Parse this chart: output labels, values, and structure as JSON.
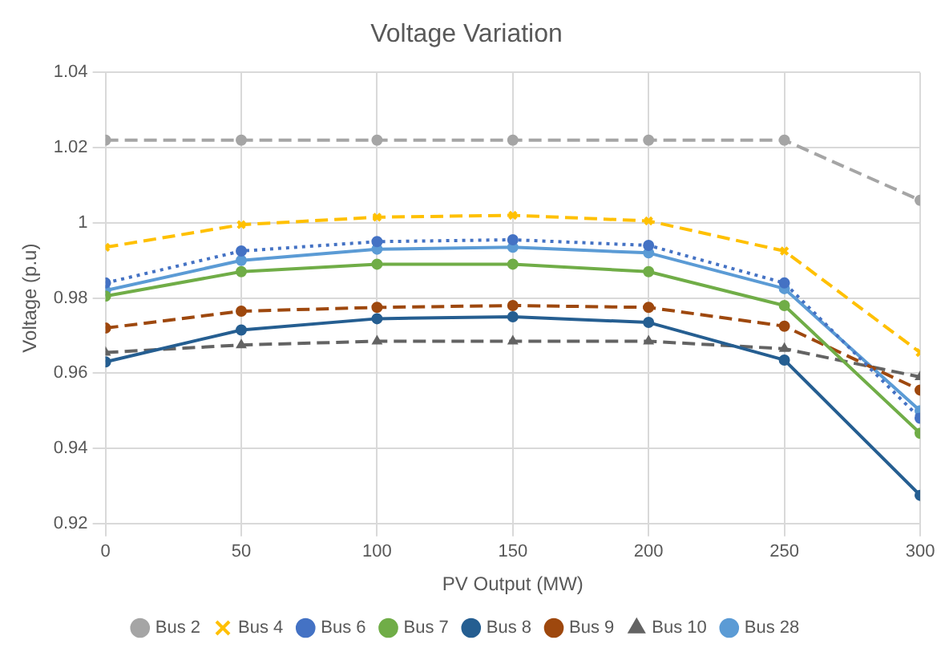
{
  "chart_data": {
    "type": "line",
    "title": "Voltage Variation",
    "xlabel": "PV Output (MW)",
    "ylabel": "Voltage (p.u)",
    "x": [
      0,
      50,
      100,
      150,
      200,
      250,
      300
    ],
    "xlim": [
      0,
      300
    ],
    "xticks": [
      0,
      50,
      100,
      150,
      200,
      250,
      300
    ],
    "ylim": [
      0.92,
      1.04
    ],
    "yticks": [
      0.92,
      0.94,
      0.96,
      0.98,
      1,
      1.02,
      1.04
    ],
    "grid": true,
    "legend": "bottom",
    "series": [
      {
        "name": "Bus 2",
        "color": "#a5a5a5",
        "line_style": "dashed",
        "marker": "circle",
        "values": [
          1.022,
          1.022,
          1.022,
          1.022,
          1.022,
          1.022,
          1.006
        ]
      },
      {
        "name": "Bus 4",
        "color": "#ffc000",
        "line_style": "dashed",
        "marker": "cross",
        "values": [
          0.9935,
          0.9995,
          1.0015,
          1.002,
          1.0005,
          0.9925,
          0.9655
        ]
      },
      {
        "name": "Bus 6",
        "color": "#4472c4",
        "line_style": "dotted",
        "marker": "circle",
        "values": [
          0.984,
          0.9925,
          0.995,
          0.9955,
          0.994,
          0.984,
          0.948
        ]
      },
      {
        "name": "Bus 7",
        "color": "#70ad47",
        "line_style": "solid",
        "marker": "circle",
        "values": [
          0.9805,
          0.987,
          0.989,
          0.989,
          0.987,
          0.978,
          0.944
        ]
      },
      {
        "name": "Bus 8",
        "color": "#255e91",
        "line_style": "solid",
        "marker": "circle",
        "values": [
          0.963,
          0.9715,
          0.9745,
          0.975,
          0.9735,
          0.9635,
          0.9275
        ]
      },
      {
        "name": "Bus 9",
        "color": "#9e480e",
        "line_style": "dashed",
        "marker": "circle",
        "values": [
          0.972,
          0.9765,
          0.9775,
          0.978,
          0.9775,
          0.9725,
          0.9555
        ]
      },
      {
        "name": "Bus 10",
        "color": "#636363",
        "line_style": "dashed",
        "marker": "triangle",
        "values": [
          0.9655,
          0.9675,
          0.9685,
          0.9685,
          0.9685,
          0.9665,
          0.959
        ]
      },
      {
        "name": "Bus 28",
        "color": "#5b9bd5",
        "line_style": "solid",
        "marker": "circle",
        "values": [
          0.982,
          0.99,
          0.993,
          0.9935,
          0.992,
          0.9825,
          0.95
        ]
      }
    ]
  }
}
